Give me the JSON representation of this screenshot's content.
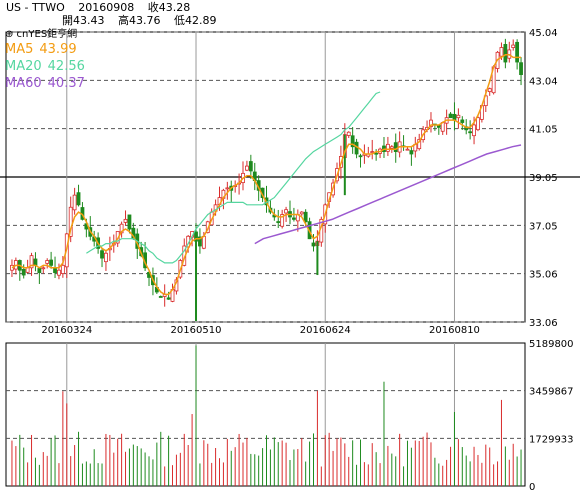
{
  "header": {
    "symbol": "US - TTWO",
    "date": "20160908",
    "close": "收43.28",
    "open": "開43.43",
    "high": "高43.76",
    "low": "低42.89"
  },
  "brand": "⊕ cnYES鉅亨網",
  "moving_averages": [
    {
      "label": "MA5",
      "value": "43.99",
      "color": "#F39C12"
    },
    {
      "label": "MA20",
      "value": "42.56",
      "color": "#55D6A0"
    },
    {
      "label": "MA60",
      "value": "40.37",
      "color": "#9B59D0"
    }
  ],
  "chart_data": [
    {
      "type": "candlestick",
      "price_axis_ticks": [
        "45.04",
        "43.04",
        "41.05",
        "39.05",
        "37.05",
        "35.06",
        "33.06"
      ],
      "ylim": [
        33.06,
        45.04
      ],
      "date_ticks": [
        "20160324",
        "20160510",
        "20160624",
        "20160810"
      ],
      "date_tick_index": [
        14,
        47,
        80,
        113
      ],
      "up_color": "#D92B2B",
      "down_color": "#1E8A1E",
      "series_close": [
        35.4,
        35.6,
        35.2,
        35.0,
        35.3,
        35.8,
        35.4,
        35.1,
        35.3,
        35.6,
        35.4,
        35.1,
        35.2,
        35.4,
        36.7,
        37.8,
        38.3,
        37.9,
        37.3,
        36.9,
        36.6,
        36.4,
        36.1,
        35.7,
        35.9,
        36.1,
        36.3,
        36.8,
        37.1,
        37.3,
        36.9,
        36.5,
        36.1,
        35.8,
        35.3,
        34.9,
        34.6,
        34.3,
        34.1,
        34.2,
        34.0,
        34.4,
        34.8,
        35.6,
        36.2,
        36.6,
        36.8,
        36.4,
        36.2,
        36.6,
        37.2,
        37.6,
        37.9,
        38.2,
        38.5,
        38.6,
        38.5,
        38.7,
        38.8,
        39.2,
        39.5,
        39.3,
        38.9,
        38.5,
        38.2,
        37.9,
        37.6,
        37.4,
        37.2,
        37.5,
        37.7,
        37.4,
        37.3,
        37.5,
        37.6,
        37.2,
        36.5,
        36.2,
        36.4,
        37.3,
        37.9,
        38.4,
        38.8,
        39.4,
        39.9,
        40.8,
        40.9,
        40.3,
        40.0,
        39.9,
        40.0,
        40.0,
        40.1,
        40.0,
        40.2,
        40.1,
        40.4,
        40.3,
        40.1,
        40.5,
        40.3,
        40.2,
        40.0,
        40.4,
        40.6,
        41.0,
        41.1,
        41.4,
        41.2,
        41.1,
        41.3,
        41.5,
        41.5,
        41.4,
        41.6,
        41.3,
        41.0,
        40.9,
        41.2,
        41.5,
        42.0,
        42.4,
        42.7,
        43.6,
        44.2,
        44.4,
        43.8,
        44.3,
        44.5,
        43.8,
        43.28
      ],
      "ma5_approx": [
        35.3,
        35.4,
        35.4,
        35.3,
        35.3,
        35.4,
        35.4,
        35.3,
        35.4,
        35.4,
        35.3,
        35.3,
        35.3,
        35.5,
        36.1,
        36.9,
        37.4,
        37.6,
        37.5,
        37.2,
        36.8,
        36.6,
        36.3,
        36.1,
        36.0,
        36.1,
        36.3,
        36.5,
        36.8,
        36.9,
        36.8,
        36.6,
        36.3,
        35.9,
        35.5,
        35.2,
        34.8,
        34.5,
        34.3,
        34.2,
        34.2,
        34.4,
        34.7,
        35.2,
        35.7,
        36.1,
        36.4,
        36.5,
        36.5,
        36.6,
        36.9,
        37.3,
        37.6,
        37.9,
        38.2,
        38.4,
        38.6,
        38.7,
        38.8,
        39.0,
        39.1,
        39.1,
        38.9,
        38.6,
        38.3,
        38.0,
        37.7,
        37.5,
        37.4,
        37.4,
        37.5,
        37.5,
        37.5,
        37.5,
        37.4,
        37.1,
        36.8,
        36.5,
        36.6,
        37.0,
        37.5,
        38.1,
        38.6,
        39.1,
        39.6,
        40.1,
        40.4,
        40.4,
        40.3,
        40.2,
        40.0,
        40.0,
        40.0,
        40.1,
        40.1,
        40.2,
        40.2,
        40.2,
        40.2,
        40.3,
        40.3,
        40.3,
        40.3,
        40.4,
        40.5,
        40.8,
        41.0,
        41.2,
        41.2,
        41.2,
        41.3,
        41.4,
        41.4,
        41.4,
        41.3,
        41.2,
        41.1,
        41.1,
        41.3,
        41.6,
        42.0,
        42.5,
        43.0,
        43.6,
        43.9,
        44.0,
        44.1,
        44.1,
        43.99,
        43.99,
        43.99
      ],
      "ma20_approx": [
        null,
        null,
        null,
        null,
        null,
        null,
        null,
        null,
        null,
        null,
        null,
        null,
        null,
        null,
        null,
        null,
        null,
        null,
        null,
        35.9,
        36.0,
        36.1,
        36.2,
        36.2,
        36.3,
        36.3,
        36.4,
        36.4,
        36.5,
        36.5,
        36.5,
        36.5,
        36.4,
        36.3,
        36.2,
        36.0,
        35.9,
        35.7,
        35.6,
        35.5,
        35.5,
        35.5,
        35.6,
        35.8,
        36.0,
        36.3,
        36.6,
        36.9,
        37.1,
        37.3,
        37.5,
        37.6,
        37.7,
        37.8,
        37.9,
        38.0,
        38.0,
        38.0,
        38.0,
        38.0,
        37.9,
        37.9,
        37.9,
        37.9,
        37.9,
        38.0,
        38.1,
        38.2,
        38.4,
        38.6,
        38.8,
        39.0,
        39.2,
        39.4,
        39.6,
        39.8,
        39.95,
        40.1,
        40.2,
        40.3,
        40.4,
        40.5,
        40.6,
        40.7,
        40.8,
        41.0,
        41.1,
        41.3,
        41.5,
        41.7,
        41.9,
        42.1,
        42.3,
        42.5,
        42.56,
        42.56,
        42.56,
        42.56,
        42.56,
        42.56,
        42.56,
        42.56,
        42.56,
        42.56,
        42.56,
        42.56,
        42.56,
        42.56,
        42.56,
        42.56,
        42.56,
        42.56,
        42.56,
        42.56,
        42.56,
        42.56,
        42.56,
        42.56,
        42.56,
        42.56,
        42.56,
        42.56,
        42.56,
        42.56,
        42.56,
        42.56,
        42.56,
        42.56,
        42.56,
        42.56,
        42.56
      ],
      "ma60_approx": [
        36.3,
        36.5,
        36.6,
        36.7,
        36.8,
        36.9,
        37.0,
        37.1,
        37.2,
        37.3,
        37.45,
        37.6,
        37.75,
        37.9,
        38.05,
        38.2,
        38.35,
        38.5,
        38.65,
        38.8,
        38.95,
        39.1,
        39.25,
        39.4,
        39.55,
        39.7,
        39.85,
        40.0,
        40.1,
        40.2,
        40.3,
        40.37
      ]
    },
    {
      "type": "bar",
      "title": "volume",
      "volume_axis_ticks": [
        "5189800",
        "3459867",
        "1729933",
        "0"
      ],
      "ylim": [
        0,
        5189800
      ]
    }
  ]
}
